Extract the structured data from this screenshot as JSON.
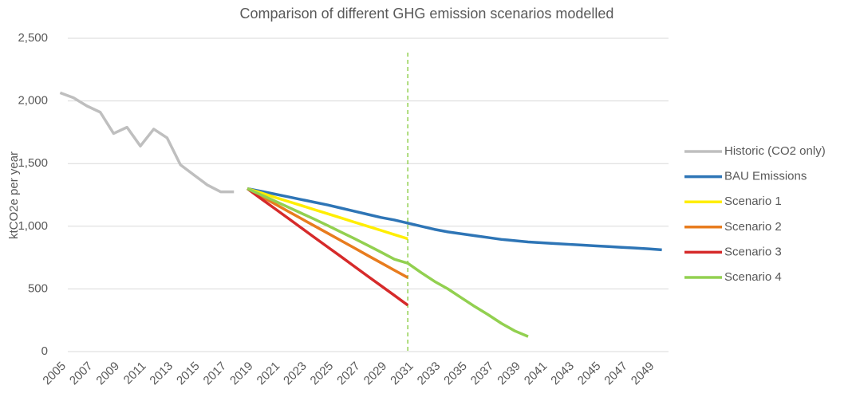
{
  "chart_data": {
    "type": "line",
    "title": "Comparison of different GHG emission scenarios modelled",
    "y_label": "ktCO2e per year",
    "categories": [
      "2005",
      null,
      "2007",
      null,
      "2009",
      null,
      "2011",
      null,
      "2013",
      null,
      "2015",
      null,
      "2017",
      null,
      "2019",
      null,
      "2021",
      null,
      "2023",
      null,
      "2025",
      null,
      "2027",
      null,
      "2029",
      null,
      "2031",
      null,
      "2033",
      null,
      "2035",
      null,
      "2037",
      null,
      "2039",
      null,
      "2041",
      null,
      "2043",
      null,
      "2045",
      null,
      "2047",
      null,
      "2049",
      null
    ],
    "series": [
      {
        "name": "Historic (CO2 only)",
        "color": "#bfbfbf",
        "values": [
          2065,
          2025,
          1960,
          1910,
          1740,
          1790,
          1640,
          1775,
          1705,
          1490,
          1410,
          1330,
          1275,
          1275,
          null,
          null,
          null,
          null,
          null,
          null,
          null,
          null,
          null,
          null,
          null,
          null,
          null,
          null,
          null,
          null,
          null,
          null,
          null,
          null,
          null,
          null,
          null,
          null,
          null,
          null,
          null,
          null,
          null,
          null,
          null,
          null
        ]
      },
      {
        "name": "BAU Emissions",
        "color": "#2e75b6",
        "values": [
          null,
          null,
          null,
          null,
          null,
          null,
          null,
          null,
          null,
          null,
          null,
          null,
          null,
          null,
          1300,
          1280,
          1258,
          1236,
          1214,
          1192,
          1170,
          1145,
          1120,
          1095,
          1070,
          1050,
          1025,
          1000,
          975,
          955,
          940,
          925,
          910,
          895,
          885,
          875,
          868,
          862,
          856,
          850,
          844,
          838,
          832,
          826,
          820,
          812
        ]
      },
      {
        "name": "Scenario 1",
        "color": "#ffee00",
        "values": [
          null,
          null,
          null,
          null,
          null,
          null,
          null,
          null,
          null,
          null,
          null,
          null,
          null,
          null,
          1300,
          1267,
          1233,
          1200,
          1167,
          1133,
          1100,
          1067,
          1033,
          1000,
          967,
          933,
          900,
          null,
          null,
          null,
          null,
          null,
          null,
          null,
          null,
          null,
          null,
          null,
          null,
          null,
          null,
          null,
          null,
          null,
          null,
          null
        ]
      },
      {
        "name": "Scenario 2",
        "color": "#e87c1e",
        "values": [
          null,
          null,
          null,
          null,
          null,
          null,
          null,
          null,
          null,
          null,
          null,
          null,
          null,
          null,
          1300,
          1241,
          1182,
          1122,
          1063,
          1004,
          945,
          886,
          827,
          767,
          708,
          649,
          590,
          null,
          null,
          null,
          null,
          null,
          null,
          null,
          null,
          null,
          null,
          null,
          null,
          null,
          null,
          null,
          null,
          null,
          null,
          null
        ]
      },
      {
        "name": "Scenario 3",
        "color": "#d62a2a",
        "values": [
          null,
          null,
          null,
          null,
          null,
          null,
          null,
          null,
          null,
          null,
          null,
          null,
          null,
          null,
          1300,
          1222,
          1145,
          1068,
          990,
          912,
          835,
          758,
          680,
          602,
          525,
          448,
          370,
          null,
          null,
          null,
          null,
          null,
          null,
          null,
          null,
          null,
          null,
          null,
          null,
          null,
          null,
          null,
          null,
          null,
          null,
          null
        ]
      },
      {
        "name": "Scenario 4",
        "color": "#92d050",
        "values": [
          null,
          null,
          null,
          null,
          null,
          null,
          null,
          null,
          null,
          null,
          null,
          null,
          null,
          null,
          1300,
          1252,
          1204,
          1155,
          1106,
          1057,
          1006,
          954,
          902,
          848,
          793,
          737,
          705,
          630,
          560,
          500,
          430,
          360,
          295,
          225,
          165,
          120,
          null,
          null,
          null,
          null,
          null,
          null,
          null,
          null,
          null,
          null
        ]
      }
    ],
    "ylim": [
      0,
      2500
    ],
    "yticks": [
      0,
      500,
      {
        "value": 1000,
        "label": "1,000"
      },
      {
        "value": 1500,
        "label": "1,500"
      },
      {
        "value": 2000,
        "label": "2,000"
      },
      {
        "value": 2500,
        "label": "2,500"
      }
    ],
    "grid": true,
    "legend": "right",
    "reference_line": {
      "category_index": 26,
      "color": "#92d050",
      "style": "dashed"
    }
  }
}
